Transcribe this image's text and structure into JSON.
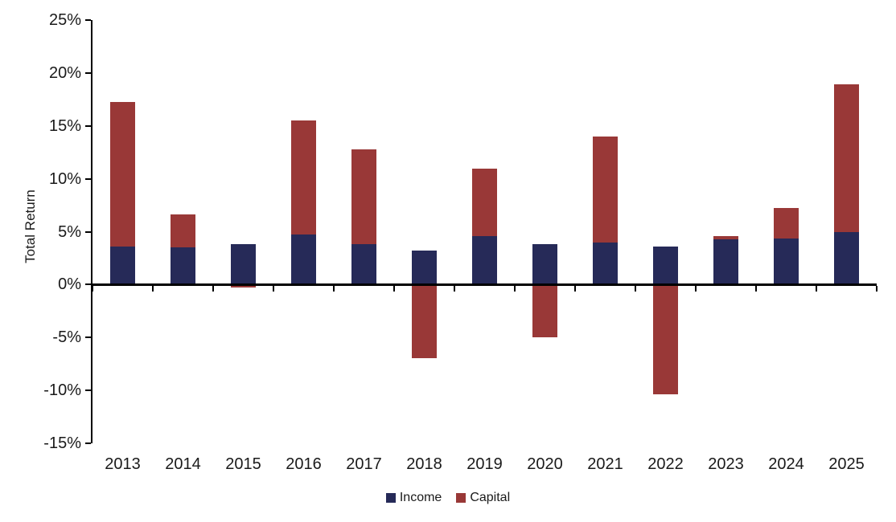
{
  "chart_data": {
    "type": "bar",
    "stacked": true,
    "title": "",
    "xlabel": "",
    "ylabel": "Total Return",
    "categories": [
      "2013",
      "2014",
      "2015",
      "2016",
      "2017",
      "2018",
      "2019",
      "2020",
      "2021",
      "2022",
      "2023",
      "2024",
      "2025"
    ],
    "series": [
      {
        "name": "Income",
        "color": "#262A58",
        "values": [
          3.6,
          3.5,
          3.85,
          4.75,
          3.85,
          3.25,
          4.6,
          3.85,
          4.0,
          3.6,
          4.25,
          4.35,
          4.95
        ]
      },
      {
        "name": "Capital",
        "color": "#993837",
        "values": [
          13.65,
          3.1,
          -0.25,
          10.8,
          8.95,
          -6.95,
          6.35,
          -4.95,
          10.0,
          -10.4,
          0.35,
          2.9,
          13.95
        ]
      }
    ],
    "ylim": [
      -15,
      25
    ],
    "yticks": {
      "values": [
        25,
        20,
        15,
        10,
        5,
        0,
        -5,
        -10,
        -15
      ],
      "labels": [
        "25%",
        "20%",
        "15%",
        "10%",
        "5%",
        "0%",
        "-5%",
        "-10%",
        "-15%"
      ]
    },
    "grid": false,
    "legend_position": "bottom"
  },
  "colors": {
    "axis": "#000000",
    "text": "#1a1a1a",
    "background": "#ffffff"
  }
}
